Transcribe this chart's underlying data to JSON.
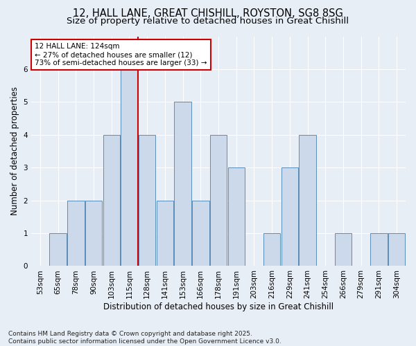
{
  "title1": "12, HALL LANE, GREAT CHISHILL, ROYSTON, SG8 8SG",
  "title2": "Size of property relative to detached houses in Great Chishill",
  "xlabel": "Distribution of detached houses by size in Great Chishill",
  "ylabel": "Number of detached properties",
  "categories": [
    "53sqm",
    "65sqm",
    "78sqm",
    "90sqm",
    "103sqm",
    "115sqm",
    "128sqm",
    "141sqm",
    "153sqm",
    "166sqm",
    "178sqm",
    "191sqm",
    "203sqm",
    "216sqm",
    "229sqm",
    "241sqm",
    "254sqm",
    "266sqm",
    "279sqm",
    "291sqm",
    "304sqm"
  ],
  "values": [
    0,
    1,
    2,
    2,
    4,
    6,
    4,
    2,
    5,
    2,
    4,
    3,
    0,
    1,
    3,
    4,
    0,
    1,
    0,
    1,
    1
  ],
  "bar_color": "#ccd9ea",
  "bar_edge_color": "#5b8db8",
  "vline_color": "#cc0000",
  "vline_pos": 6.0,
  "annotation_title": "12 HALL LANE: 124sqm",
  "annotation_line1": "← 27% of detached houses are smaller (12)",
  "annotation_line2": "73% of semi-detached houses are larger (33) →",
  "annotation_box_facecolor": "#ffffff",
  "annotation_box_edgecolor": "#cc0000",
  "footer1": "Contains HM Land Registry data © Crown copyright and database right 2025.",
  "footer2": "Contains public sector information licensed under the Open Government Licence v3.0.",
  "ylim": [
    0,
    7
  ],
  "yticks": [
    0,
    1,
    2,
    3,
    4,
    5,
    6
  ],
  "background_color": "#e8eef6",
  "plot_bg_color": "#e8eef6",
  "title1_fontsize": 10.5,
  "title2_fontsize": 9.5,
  "axis_label_fontsize": 8.5,
  "tick_fontsize": 7.5,
  "footer_fontsize": 6.5,
  "annot_fontsize": 7.5
}
